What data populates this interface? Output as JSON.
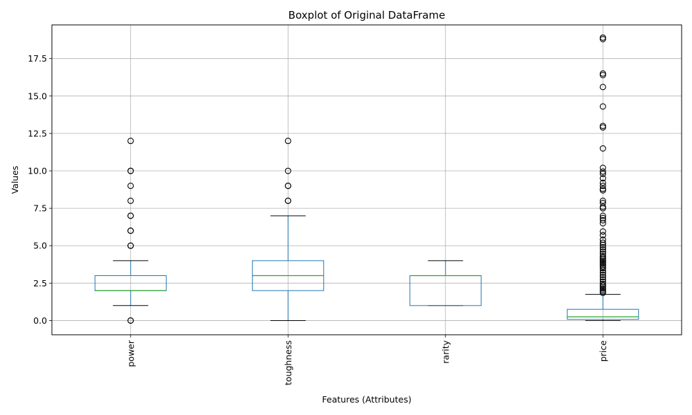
{
  "chart_data": {
    "type": "boxplot",
    "title": "Boxplot of Original DataFrame",
    "xlabel": "Features (Attributes)",
    "ylabel": "Values",
    "ylim": [
      -0.95,
      19.75
    ],
    "yticks": [
      0.0,
      2.5,
      5.0,
      7.5,
      10.0,
      12.5,
      15.0,
      17.5
    ],
    "ytick_labels": [
      "0.0",
      "2.5",
      "5.0",
      "7.5",
      "10.0",
      "12.5",
      "15.0",
      "17.5"
    ],
    "grid": true,
    "x_tick_rotation": 90,
    "colors": {
      "box": "#1f77b4",
      "median": "#2ca02c",
      "whisker": "#000000",
      "grid": "#b0b0b0"
    },
    "categories": [
      "power",
      "toughness",
      "rarity",
      "price"
    ],
    "boxes": [
      {
        "name": "power",
        "whislo": 1.0,
        "q1": 2.0,
        "med": 2.0,
        "q3": 3.0,
        "whishi": 4.0,
        "fliers": [
          0,
          0,
          5,
          5,
          6,
          6,
          7,
          7,
          8,
          9,
          10,
          10,
          12
        ]
      },
      {
        "name": "toughness",
        "whislo": 0.0,
        "q1": 2.0,
        "med": 3.0,
        "q3": 4.0,
        "whishi": 7.0,
        "fliers": [
          8,
          8,
          9,
          9,
          10,
          12
        ]
      },
      {
        "name": "rarity",
        "whislo": 1.0,
        "q1": 1.0,
        "med": 3.0,
        "q3": 3.0,
        "whishi": 4.0,
        "fliers": []
      },
      {
        "name": "price",
        "whislo": 0.0,
        "q1": 0.08,
        "med": 0.25,
        "q3": 0.75,
        "whishi": 1.75,
        "fliers": [
          1.85,
          1.95,
          2.05,
          2.15,
          2.25,
          2.35,
          2.45,
          2.6,
          2.75,
          2.9,
          3.05,
          3.2,
          3.35,
          3.5,
          3.6,
          3.7,
          3.8,
          3.9,
          4.0,
          4.1,
          4.2,
          4.3,
          4.45,
          4.6,
          4.75,
          4.9,
          5.05,
          5.2,
          5.4,
          5.7,
          5.95,
          6.5,
          6.7,
          6.85,
          7.0,
          7.5,
          7.6,
          7.85,
          8.0,
          8.7,
          8.8,
          9.0,
          9.2,
          9.5,
          9.8,
          9.95,
          10.2,
          11.5,
          12.9,
          13.0,
          14.3,
          15.6,
          16.4,
          16.5,
          18.8,
          18.9
        ]
      }
    ]
  }
}
